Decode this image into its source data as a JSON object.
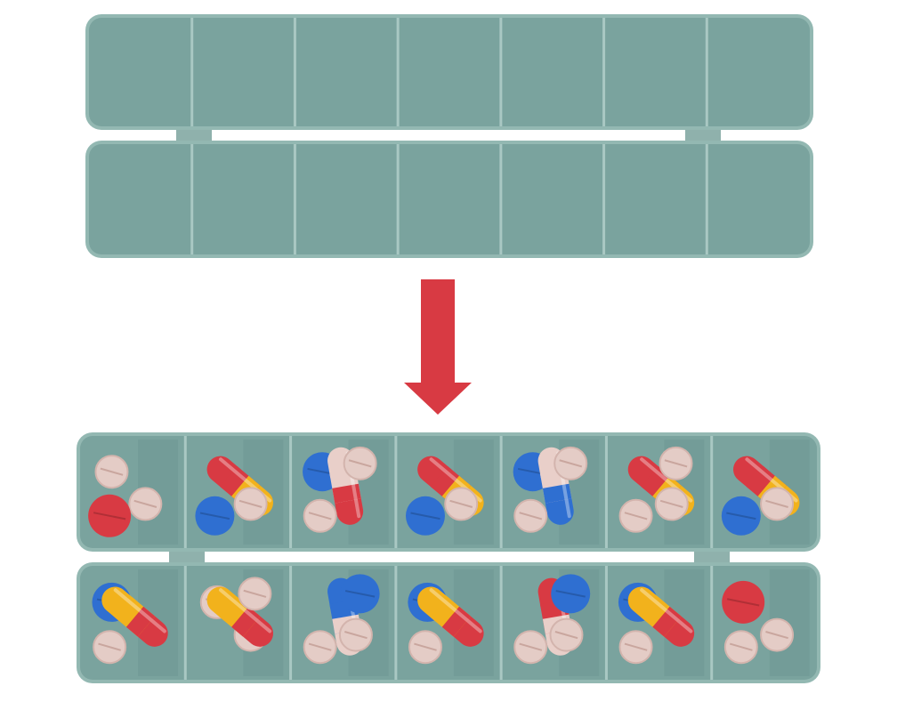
{
  "colors": {
    "background": "#ffffff",
    "case": "#7aa39e",
    "case_edge": "#93b8b2",
    "divider": "#a9c8c3",
    "hinge": "#8fb1ac",
    "arrow": "#d83a43",
    "pill_red": "#d83a43",
    "pill_yellow": "#f2b21c",
    "pill_blue": "#2f6fd1",
    "pill_cream": "#e9cfc9",
    "tablet_beige": "#e4ccc6"
  },
  "scene": {
    "empty_case": {
      "rows": 2,
      "compartments_per_row": 7
    },
    "arrow": {
      "direction": "down",
      "icon": "arrow-down-icon"
    },
    "filled_case": {
      "rows": 2,
      "compartments_per_row": 7,
      "top_row_contents": [
        [
          "tablet",
          "tablet",
          "red-round-pill"
        ],
        [
          "red-yellow-capsule",
          "tablet",
          "blue-round-pill"
        ],
        [
          "blue-round-pill",
          "cream-red-capsule",
          "tablet",
          "tablet"
        ],
        [
          "red-yellow-capsule",
          "tablet",
          "blue-round-pill"
        ],
        [
          "blue-round-pill",
          "cream-blue-capsule",
          "tablet",
          "tablet"
        ],
        [
          "red-yellow-capsule",
          "tablet",
          "tablet",
          "tablet"
        ],
        [
          "red-yellow-capsule",
          "tablet",
          "blue-round-pill"
        ]
      ],
      "bottom_row_contents": [
        [
          "blue-round-pill",
          "yellow-red-capsule",
          "tablet"
        ],
        [
          "tablet",
          "tablet",
          "yellow-red-capsule",
          "tablet"
        ],
        [
          "blue-cream-capsule",
          "tablet",
          "tablet",
          "blue-round-pill"
        ],
        [
          "blue-round-pill",
          "yellow-red-capsule",
          "tablet"
        ],
        [
          "red-cream-capsule",
          "tablet",
          "tablet",
          "blue-round-pill"
        ],
        [
          "blue-round-pill",
          "yellow-red-capsule",
          "tablet"
        ],
        [
          "red-round-pill",
          "tablet",
          "tablet"
        ]
      ]
    }
  }
}
